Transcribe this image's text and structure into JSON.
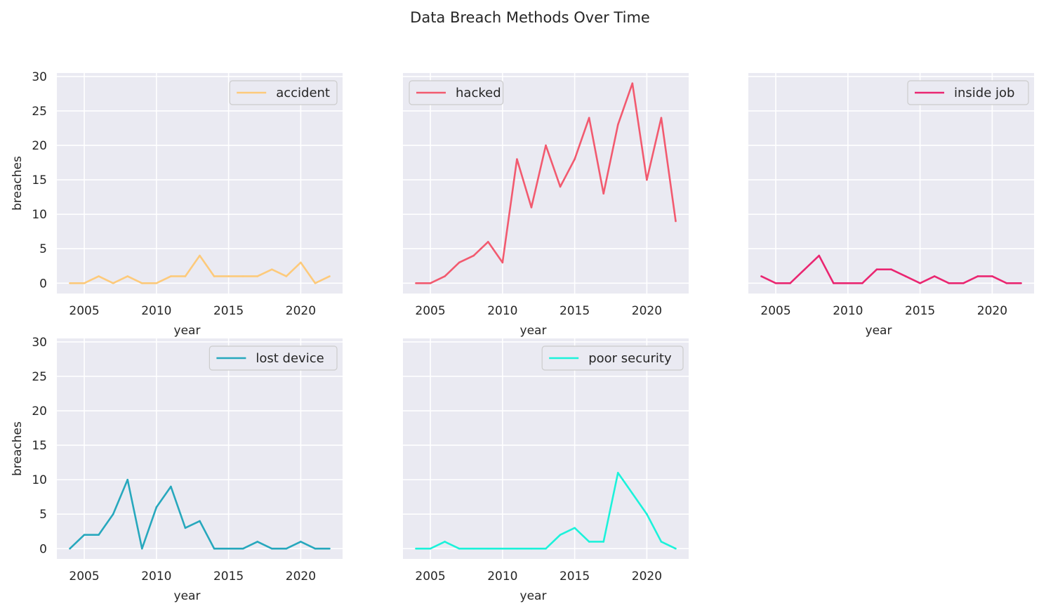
{
  "figure": {
    "title": "Data Breach Methods Over Time"
  },
  "colors": {
    "panel_background": "#eaeaf2",
    "grid": "#ffffff",
    "text": "#262626"
  },
  "chart_data": [
    {
      "type": "line",
      "xlabel": "year",
      "ylabel": "breaches",
      "xlim": [
        2003.1,
        2022.9
      ],
      "ylim": [
        -1.5,
        30.5
      ],
      "xticks": [
        2005,
        2010,
        2015,
        2020
      ],
      "yticks": [
        0,
        5,
        10,
        15,
        20,
        25,
        30
      ],
      "legend_position": "upper right",
      "grid": true,
      "x": [
        2004,
        2005,
        2006,
        2007,
        2008,
        2009,
        2010,
        2011,
        2012,
        2013,
        2014,
        2015,
        2016,
        2017,
        2018,
        2019,
        2020,
        2021,
        2022
      ],
      "series": [
        {
          "name": "accident",
          "color": "#fdca7b",
          "values": [
            0,
            0,
            1,
            0,
            1,
            0,
            0,
            1,
            1,
            4,
            1,
            1,
            1,
            1,
            2,
            1,
            3,
            0,
            1
          ]
        }
      ]
    },
    {
      "type": "line",
      "xlabel": "year",
      "ylabel": "",
      "xlim": [
        2003.1,
        2022.9
      ],
      "ylim": [
        -1.5,
        30.5
      ],
      "xticks": [
        2005,
        2010,
        2015,
        2020
      ],
      "yticks": [
        0,
        5,
        10,
        15,
        20,
        25,
        30
      ],
      "legend_position": "upper left",
      "grid": true,
      "x": [
        2004,
        2005,
        2006,
        2007,
        2008,
        2009,
        2010,
        2011,
        2012,
        2013,
        2014,
        2015,
        2016,
        2017,
        2018,
        2019,
        2020,
        2021,
        2022
      ],
      "series": [
        {
          "name": "hacked",
          "color": "#f25a6f",
          "values": [
            0,
            0,
            1,
            3,
            4,
            6,
            3,
            18,
            11,
            20,
            14,
            18,
            24,
            13,
            23,
            29,
            15,
            24,
            9
          ]
        }
      ]
    },
    {
      "type": "line",
      "xlabel": "year",
      "ylabel": "",
      "xlim": [
        2003.1,
        2022.9
      ],
      "ylim": [
        -1.5,
        30.5
      ],
      "xticks": [
        2005,
        2010,
        2015,
        2020
      ],
      "yticks": [
        0,
        5,
        10,
        15,
        20,
        25,
        30
      ],
      "legend_position": "upper right",
      "grid": true,
      "x": [
        2004,
        2005,
        2006,
        2007,
        2008,
        2009,
        2010,
        2011,
        2012,
        2013,
        2014,
        2015,
        2016,
        2017,
        2018,
        2019,
        2020,
        2021,
        2022
      ],
      "series": [
        {
          "name": "inside job",
          "color": "#ea2671",
          "values": [
            1,
            0,
            0,
            2,
            4,
            0,
            0,
            0,
            2,
            2,
            1,
            0,
            1,
            0,
            0,
            1,
            1,
            0,
            0
          ]
        }
      ]
    },
    {
      "type": "line",
      "xlabel": "year",
      "ylabel": "breaches",
      "xlim": [
        2003.1,
        2022.9
      ],
      "ylim": [
        -1.5,
        30.5
      ],
      "xticks": [
        2005,
        2010,
        2015,
        2020
      ],
      "yticks": [
        0,
        5,
        10,
        15,
        20,
        25,
        30
      ],
      "legend_position": "upper right",
      "grid": true,
      "x": [
        2004,
        2005,
        2006,
        2007,
        2008,
        2009,
        2010,
        2011,
        2012,
        2013,
        2014,
        2015,
        2016,
        2017,
        2018,
        2019,
        2020,
        2021,
        2022
      ],
      "series": [
        {
          "name": "lost device",
          "color": "#27a8bd",
          "values": [
            0,
            2,
            2,
            5,
            10,
            0,
            6,
            9,
            3,
            4,
            0,
            0,
            0,
            1,
            0,
            0,
            1,
            0,
            0
          ]
        }
      ]
    },
    {
      "type": "line",
      "xlabel": "year",
      "ylabel": "",
      "xlim": [
        2003.1,
        2022.9
      ],
      "ylim": [
        -1.5,
        30.5
      ],
      "xticks": [
        2005,
        2010,
        2015,
        2020
      ],
      "yticks": [
        0,
        5,
        10,
        15,
        20,
        25,
        30
      ],
      "legend_position": "upper right",
      "grid": true,
      "x": [
        2004,
        2005,
        2006,
        2007,
        2008,
        2009,
        2010,
        2011,
        2012,
        2013,
        2014,
        2015,
        2016,
        2017,
        2018,
        2019,
        2020,
        2021,
        2022
      ],
      "series": [
        {
          "name": "poor security",
          "color": "#1cf2da",
          "values": [
            0,
            0,
            1,
            0,
            0,
            0,
            0,
            0,
            0,
            0,
            2,
            3,
            1,
            1,
            11,
            8,
            5,
            1,
            0
          ]
        }
      ]
    }
  ]
}
